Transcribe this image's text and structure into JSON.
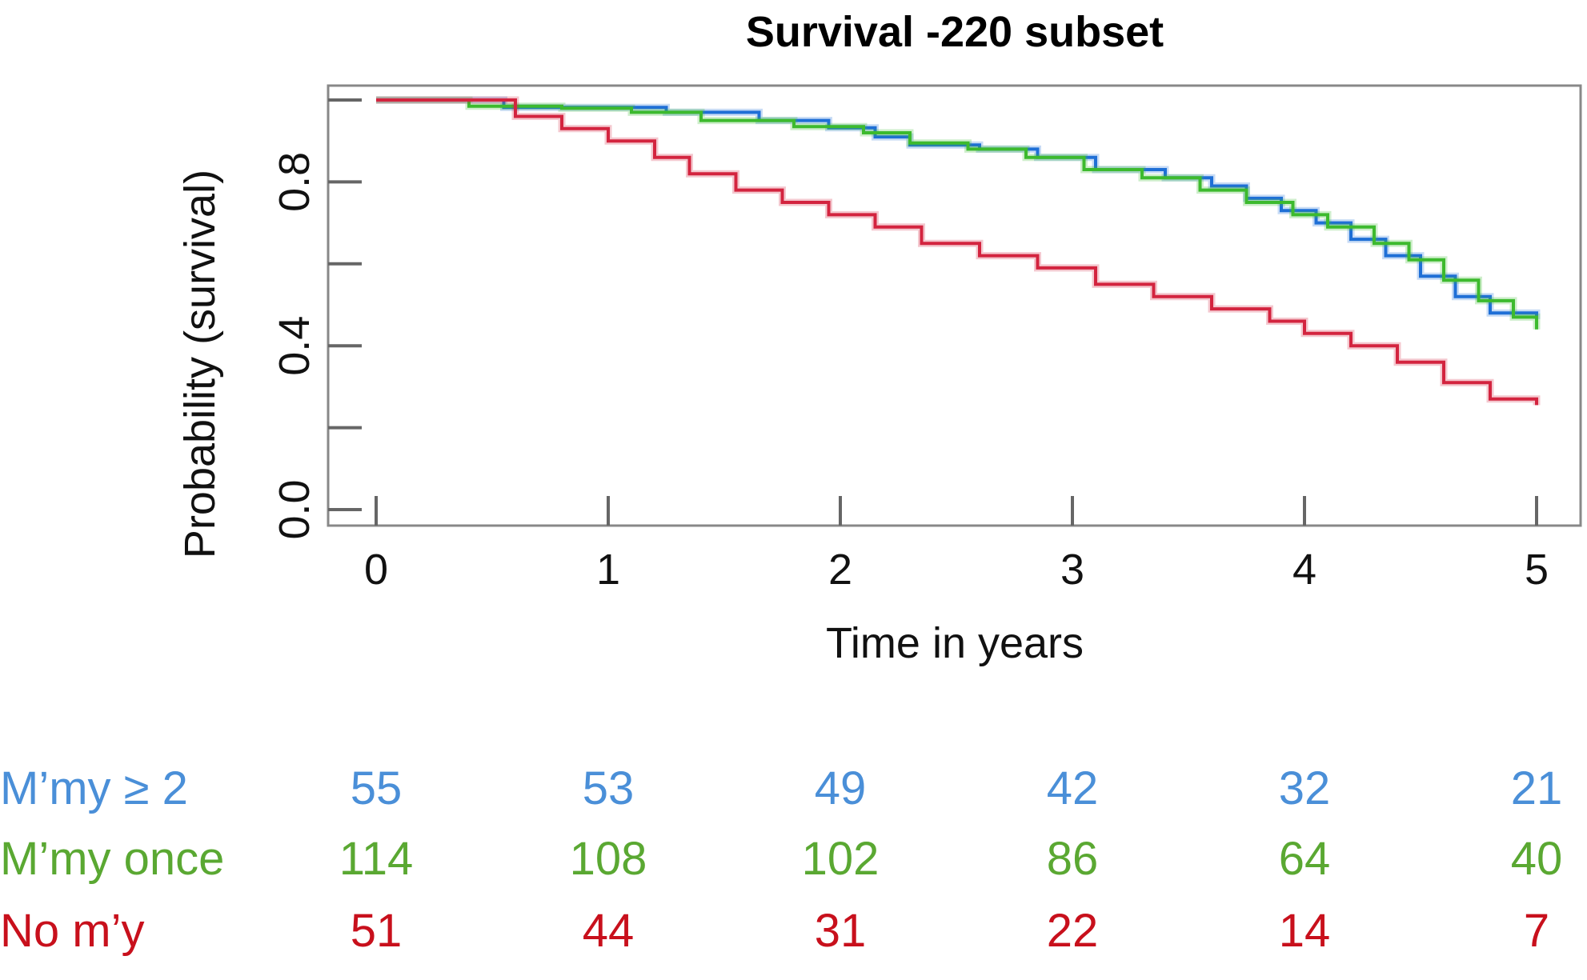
{
  "chart_data": {
    "type": "line",
    "title": "Survival -220 subset",
    "xlabel": "Time in years",
    "ylabel": "Probability (survival)",
    "xlim": [
      0,
      5
    ],
    "ylim": [
      0,
      1
    ],
    "x_ticks": [
      0,
      1,
      2,
      3,
      4,
      5
    ],
    "x_tick_labels": [
      "0",
      "1",
      "2",
      "3",
      "4",
      "5"
    ],
    "y_ticks": [
      0,
      0.2,
      0.4,
      0.6,
      0.8,
      1.0
    ],
    "y_tick_labels": [
      "0.0",
      "",
      "0.4",
      "",
      "0.8",
      ""
    ],
    "grid": false,
    "legend": "none",
    "series": [
      {
        "name": "M’my ≥ 2",
        "color": "#1f6fd6",
        "points": [
          [
            0,
            1.0
          ],
          [
            0.55,
            0.982
          ],
          [
            0.9,
            0.982
          ],
          [
            1.25,
            0.97
          ],
          [
            1.65,
            0.95
          ],
          [
            1.95,
            0.932
          ],
          [
            2.15,
            0.91
          ],
          [
            2.3,
            0.89
          ],
          [
            2.6,
            0.88
          ],
          [
            2.85,
            0.86
          ],
          [
            3.1,
            0.83
          ],
          [
            3.4,
            0.81
          ],
          [
            3.6,
            0.79
          ],
          [
            3.75,
            0.76
          ],
          [
            3.9,
            0.73
          ],
          [
            4.05,
            0.7
          ],
          [
            4.2,
            0.66
          ],
          [
            4.35,
            0.62
          ],
          [
            4.5,
            0.57
          ],
          [
            4.65,
            0.52
          ],
          [
            4.8,
            0.48
          ],
          [
            5.0,
            0.465
          ]
        ]
      },
      {
        "name": "M’my once",
        "color": "#3dba2e",
        "points": [
          [
            0,
            1.0
          ],
          [
            0.4,
            0.985
          ],
          [
            0.8,
            0.98
          ],
          [
            1.1,
            0.97
          ],
          [
            1.4,
            0.95
          ],
          [
            1.8,
            0.935
          ],
          [
            2.1,
            0.92
          ],
          [
            2.3,
            0.895
          ],
          [
            2.55,
            0.88
          ],
          [
            2.8,
            0.86
          ],
          [
            3.05,
            0.83
          ],
          [
            3.3,
            0.81
          ],
          [
            3.55,
            0.78
          ],
          [
            3.75,
            0.75
          ],
          [
            3.95,
            0.72
          ],
          [
            4.1,
            0.69
          ],
          [
            4.3,
            0.65
          ],
          [
            4.45,
            0.61
          ],
          [
            4.6,
            0.56
          ],
          [
            4.75,
            0.51
          ],
          [
            4.9,
            0.47
          ],
          [
            5.0,
            0.44
          ]
        ]
      },
      {
        "name": "No m’y",
        "color": "#d3243f",
        "points": [
          [
            0,
            1.0
          ],
          [
            0.45,
            1.0
          ],
          [
            0.6,
            0.96
          ],
          [
            0.8,
            0.93
          ],
          [
            1.0,
            0.9
          ],
          [
            1.2,
            0.86
          ],
          [
            1.35,
            0.82
          ],
          [
            1.55,
            0.78
          ],
          [
            1.75,
            0.75
          ],
          [
            1.95,
            0.72
          ],
          [
            2.15,
            0.69
          ],
          [
            2.35,
            0.65
          ],
          [
            2.6,
            0.62
          ],
          [
            2.85,
            0.59
          ],
          [
            3.1,
            0.55
          ],
          [
            3.35,
            0.52
          ],
          [
            3.6,
            0.49
          ],
          [
            3.85,
            0.46
          ],
          [
            4.0,
            0.43
          ],
          [
            4.2,
            0.4
          ],
          [
            4.4,
            0.36
          ],
          [
            4.6,
            0.31
          ],
          [
            4.8,
            0.27
          ],
          [
            5.0,
            0.255
          ]
        ]
      }
    ],
    "risk_table": {
      "times": [
        0,
        1,
        2,
        3,
        4,
        5
      ],
      "rows": [
        {
          "label": "M’my ≥ 2",
          "color": "#4a8fd8",
          "values": [
            "55",
            "53",
            "49",
            "42",
            "32",
            "21"
          ]
        },
        {
          "label": "M’my once",
          "color": "#5aa832",
          "values": [
            "114",
            "108",
            "102",
            "86",
            "64",
            "40"
          ]
        },
        {
          "label": "No m’y",
          "color": "#c8101c",
          "values": [
            "51",
            "44",
            "31",
            "22",
            "14",
            "7"
          ]
        }
      ]
    }
  }
}
